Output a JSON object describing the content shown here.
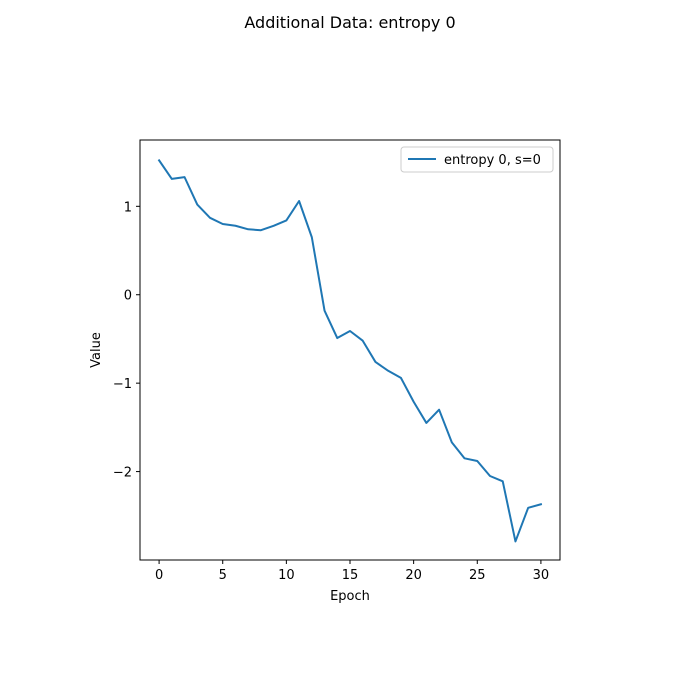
{
  "chart_data": {
    "type": "line",
    "title": "Additional Data: entropy 0",
    "xlabel": "Epoch",
    "ylabel": "Value",
    "xlim": [
      -1.5,
      31.5
    ],
    "ylim": [
      -3.0,
      1.75
    ],
    "xticks": [
      0,
      5,
      10,
      15,
      20,
      25,
      30
    ],
    "yticks": [
      1,
      0,
      -1,
      -2
    ],
    "ytick_labels": [
      "1",
      "0",
      "−1",
      "−2"
    ],
    "grid": false,
    "legend_position": "top-right",
    "series": [
      {
        "name": "entropy 0, s=0",
        "color": "#1f77b4",
        "x": [
          0,
          1,
          2,
          3,
          4,
          5,
          6,
          7,
          8,
          9,
          10,
          11,
          12,
          13,
          14,
          15,
          16,
          17,
          18,
          19,
          20,
          21,
          22,
          23,
          24,
          25,
          26,
          27,
          28,
          29,
          30
        ],
        "y": [
          1.52,
          1.31,
          1.33,
          1.02,
          0.87,
          0.8,
          0.78,
          0.74,
          0.73,
          0.78,
          0.84,
          1.06,
          0.65,
          -0.18,
          -0.49,
          -0.41,
          -0.52,
          -0.76,
          -0.86,
          -0.94,
          -1.21,
          -1.45,
          -1.3,
          -1.67,
          -1.85,
          -1.88,
          -2.05,
          -2.11,
          -2.79,
          -2.41,
          -2.37
        ]
      }
    ]
  }
}
